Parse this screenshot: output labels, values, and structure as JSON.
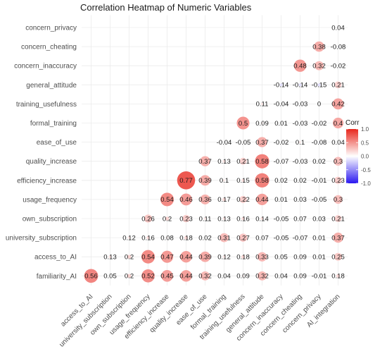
{
  "chart_data": {
    "type": "heatmap",
    "title": "Correlation Heatmap of Numeric Variables",
    "variables": [
      "access_to_AI",
      "university_subscription",
      "own_subscription",
      "usage_frequency",
      "efficiency_increase",
      "quality_increase",
      "ease_of_use",
      "formal_training",
      "training_usefulness",
      "general_attitude",
      "concern_inaccuracy",
      "concern_cheating",
      "concern_privacy",
      "AI_integration"
    ],
    "y_order_top_to_bottom": [
      "concern_privacy",
      "concern_cheating",
      "concern_inaccuracy",
      "general_attitude",
      "training_usefulness",
      "formal_training",
      "ease_of_use",
      "quality_increase",
      "efficiency_increase",
      "usage_frequency",
      "own_subscription",
      "university_subscription",
      "access_to_AI",
      "familiarity_AI"
    ],
    "rows": {
      "concern_privacy": [
        null,
        null,
        null,
        null,
        null,
        null,
        null,
        null,
        null,
        null,
        null,
        null,
        null,
        0.04
      ],
      "concern_cheating": [
        null,
        null,
        null,
        null,
        null,
        null,
        null,
        null,
        null,
        null,
        null,
        null,
        0.38,
        -0.08
      ],
      "concern_inaccuracy": [
        null,
        null,
        null,
        null,
        null,
        null,
        null,
        null,
        null,
        null,
        null,
        0.48,
        0.32,
        -0.02
      ],
      "general_attitude": [
        null,
        null,
        null,
        null,
        null,
        null,
        null,
        null,
        null,
        null,
        -0.14,
        -0.14,
        -0.15,
        0.21
      ],
      "training_usefulness": [
        null,
        null,
        null,
        null,
        null,
        null,
        null,
        null,
        null,
        0.11,
        -0.04,
        -0.03,
        0,
        0.42
      ],
      "formal_training": [
        null,
        null,
        null,
        null,
        null,
        null,
        null,
        null,
        0.5,
        0.09,
        0.01,
        -0.03,
        -0.02,
        0.4
      ],
      "ease_of_use": [
        null,
        null,
        null,
        null,
        null,
        null,
        null,
        -0.04,
        -0.05,
        0.37,
        -0.02,
        0.1,
        -0.08,
        0.04
      ],
      "quality_increase": [
        null,
        null,
        null,
        null,
        null,
        null,
        0.37,
        0.13,
        0.21,
        0.58,
        -0.07,
        -0.03,
        0.02,
        0.3
      ],
      "efficiency_increase": [
        null,
        null,
        null,
        null,
        null,
        0.77,
        0.39,
        0.1,
        0.15,
        0.58,
        0.02,
        0.02,
        -0.01,
        0.23
      ],
      "usage_frequency": [
        null,
        null,
        null,
        null,
        0.54,
        0.46,
        0.36,
        0.17,
        0.22,
        0.44,
        0.01,
        0.03,
        -0.05,
        0.3
      ],
      "own_subscription": [
        null,
        null,
        null,
        0.26,
        0.2,
        0.23,
        0.11,
        0.13,
        0.16,
        0.14,
        -0.05,
        0.07,
        0.03,
        0.21
      ],
      "university_subscription": [
        null,
        null,
        0.12,
        0.16,
        0.08,
        0.18,
        0.02,
        0.31,
        0.27,
        0.07,
        -0.05,
        -0.07,
        0.01,
        0.37
      ],
      "access_to_AI": [
        null,
        0.13,
        0.2,
        0.54,
        0.47,
        0.44,
        0.39,
        0.12,
        0.18,
        0.33,
        0.05,
        0.09,
        0.01,
        0.25
      ],
      "familiarity_AI": [
        0.56,
        0.05,
        0.2,
        0.52,
        0.45,
        0.44,
        0.32,
        0.04,
        0.09,
        0.32,
        0.04,
        0.09,
        -0.01,
        0.18
      ]
    },
    "legend": {
      "title": "Corr",
      "ticks": [
        "1.0",
        "0.5",
        "0.0",
        "-0.5",
        "-1.0"
      ],
      "range": [
        -1,
        1
      ],
      "colors": {
        "high": "#e8261c",
        "mid": "#ffffff",
        "low": "#2b18f0"
      },
      "placement": "right"
    },
    "grid": true
  }
}
